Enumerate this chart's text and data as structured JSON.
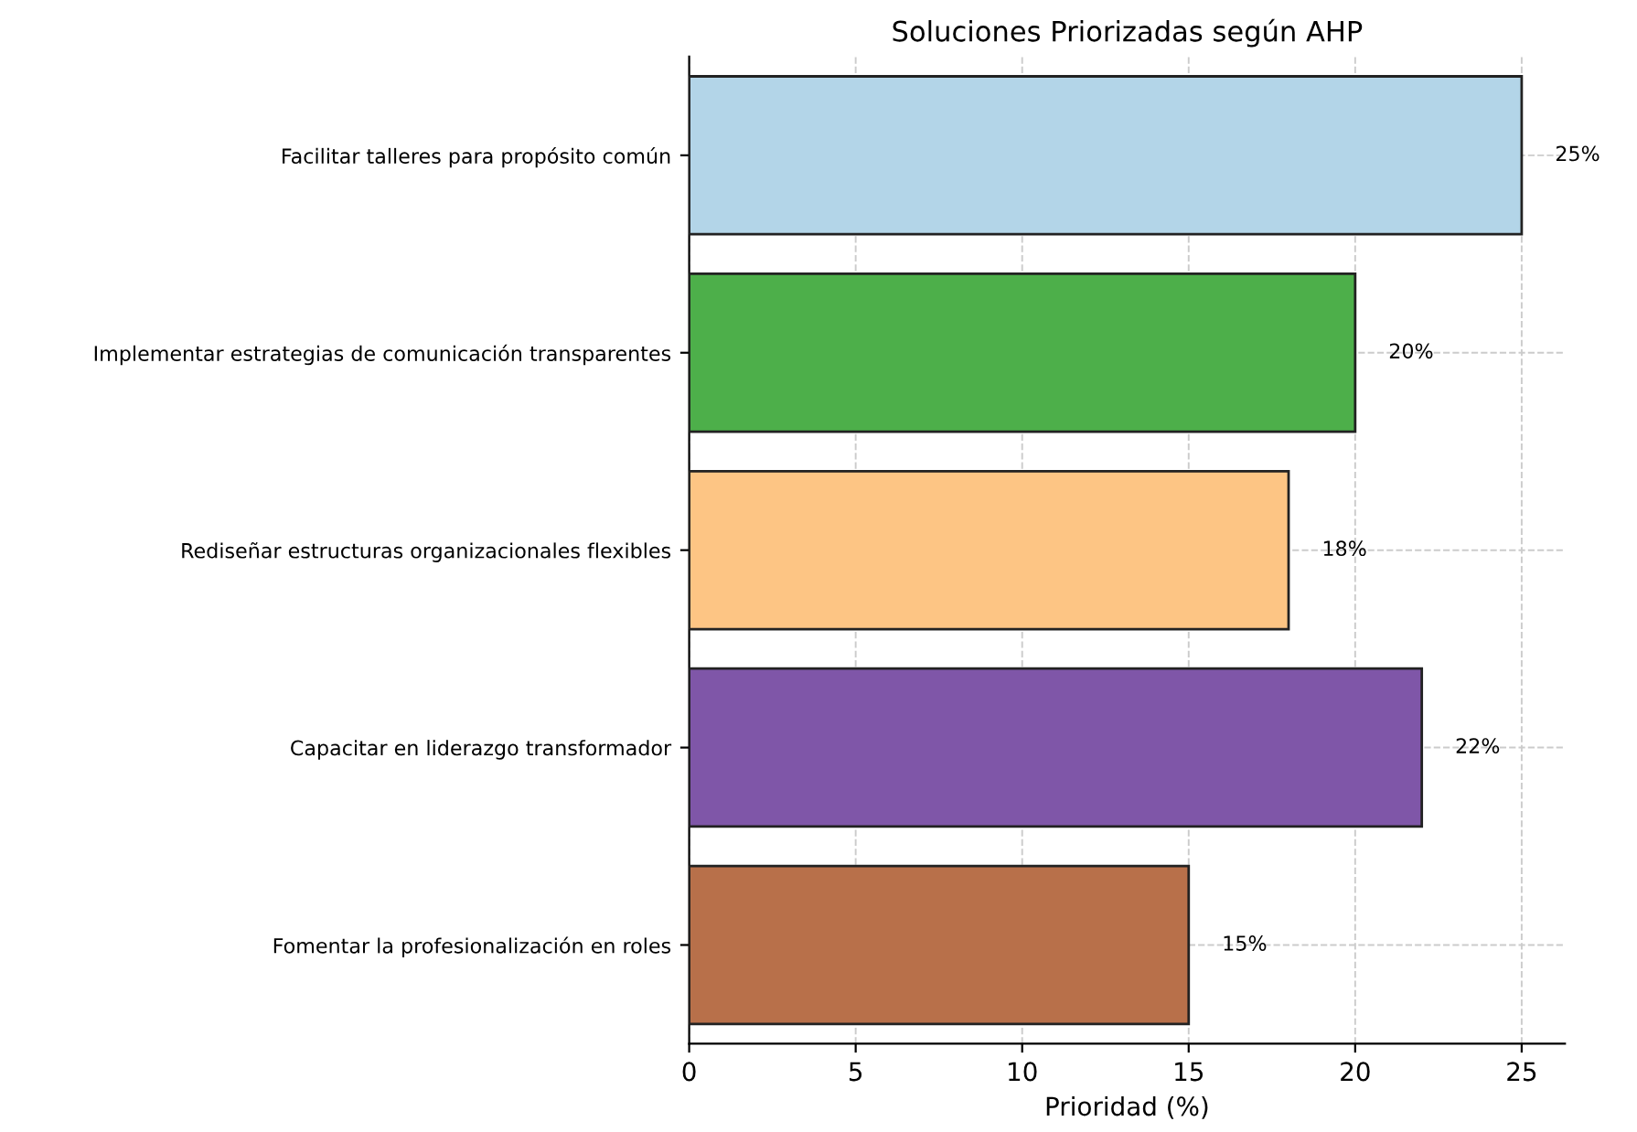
{
  "chart_data": {
    "type": "bar",
    "orientation": "horizontal",
    "title": "Soluciones Priorizadas según AHP",
    "xlabel": "Prioridad (%)",
    "categories": [
      "Facilitar talleres para propósito común",
      "Implementar estrategias de comunicación transparentes",
      "Rediseñar estructuras organizacionales flexibles",
      "Capacitar en liderazgo transformador",
      "Fomentar la profesionalización en roles"
    ],
    "values": [
      25,
      20,
      18,
      22,
      15
    ],
    "colors": [
      "#b3d5e8",
      "#4daf4a",
      "#fdc584",
      "#7f56a8",
      "#b8704a"
    ],
    "value_labels": [
      "25%",
      "20%",
      "18%",
      "22%",
      "15%"
    ],
    "xlim": [
      0,
      26.3
    ],
    "xticks": [
      0,
      5,
      10,
      15,
      20,
      25
    ],
    "grid": true
  }
}
